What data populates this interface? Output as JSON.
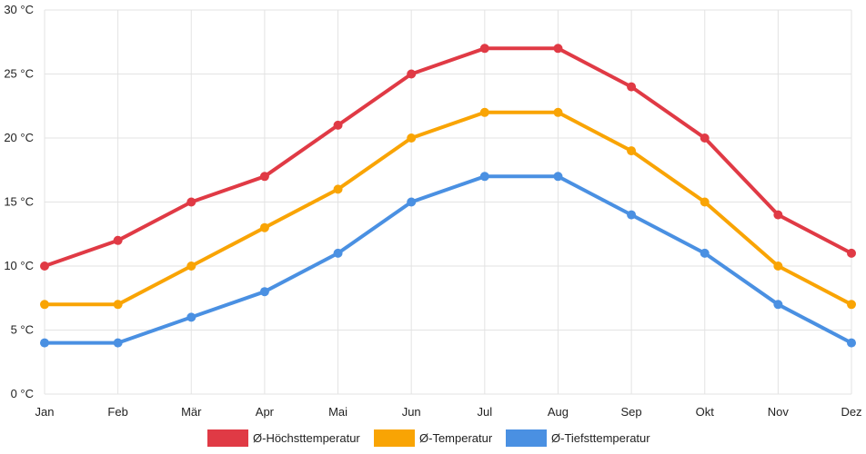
{
  "chart_data": {
    "type": "line",
    "title": "",
    "xlabel": "",
    "ylabel": "",
    "categories": [
      "Jan",
      "Feb",
      "Mär",
      "Apr",
      "Mai",
      "Jun",
      "Jul",
      "Aug",
      "Sep",
      "Okt",
      "Nov",
      "Dez"
    ],
    "ylim": [
      0,
      30
    ],
    "yticks": [
      0,
      5,
      10,
      15,
      20,
      25,
      30
    ],
    "ytick_labels": [
      "0 °C",
      "5 °C",
      "10 °C",
      "15 °C",
      "20 °C",
      "25 °C",
      "30 °C"
    ],
    "grid": true,
    "legend_position": "bottom",
    "series": [
      {
        "name": "Ø-Höchsttemperatur",
        "color": "#e03a45",
        "values": [
          10,
          12,
          15,
          17,
          21,
          25,
          27,
          27,
          24,
          20,
          14,
          11
        ]
      },
      {
        "name": "Ø-Temperatur",
        "color": "#f9a404",
        "values": [
          7,
          7,
          10,
          13,
          16,
          20,
          22,
          22,
          19,
          15,
          10,
          7
        ]
      },
      {
        "name": "Ø-Tiefsttemperatur",
        "color": "#4a90e2",
        "values": [
          4,
          4,
          6,
          8,
          11,
          15,
          17,
          17,
          14,
          11,
          7,
          4
        ]
      }
    ]
  }
}
